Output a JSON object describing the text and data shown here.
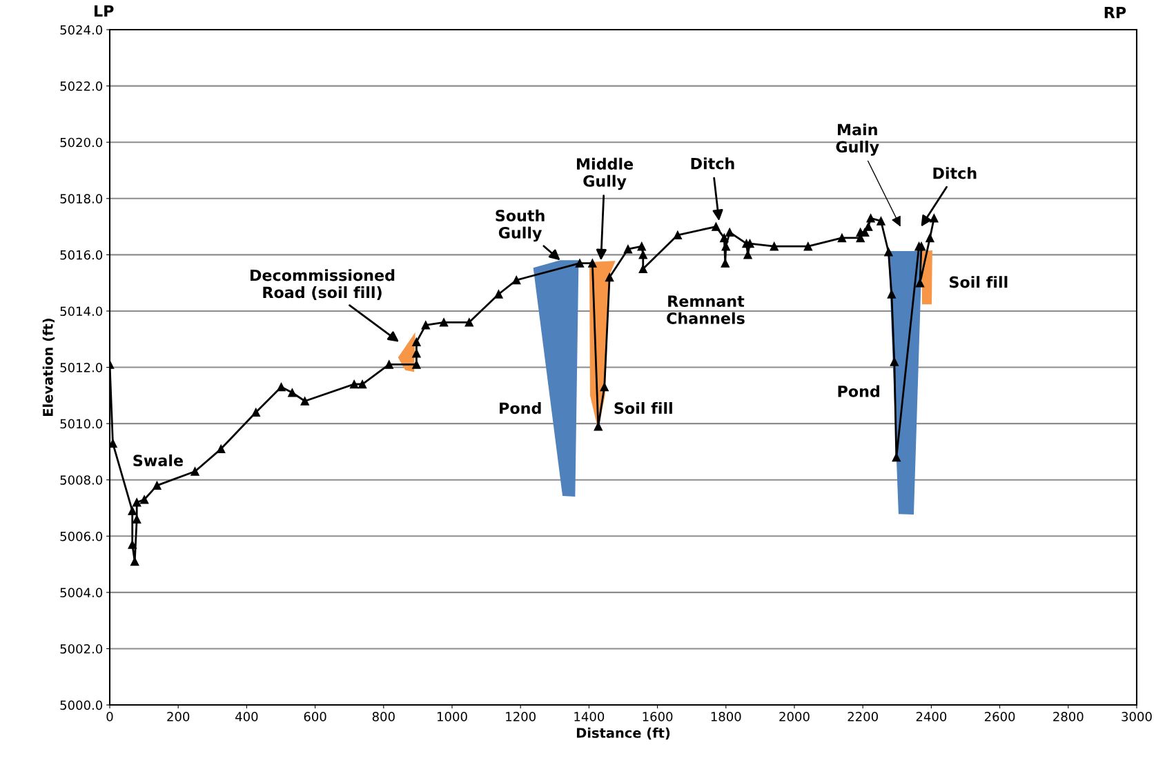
{
  "chart_data": {
    "type": "line",
    "xlabel": "Distance (ft)",
    "ylabel": "Elevation (ft)",
    "x": [
      0,
      9,
      66,
      66,
      73,
      79,
      79,
      101,
      138,
      249,
      325,
      427,
      501,
      533,
      570,
      714,
      738,
      816,
      896,
      896,
      896,
      923,
      976,
      1050,
      1136,
      1188,
      1373,
      1410,
      1427,
      1445,
      1460,
      1514,
      1554,
      1558,
      1558,
      1659,
      1771,
      1795,
      1798,
      1800,
      1811,
      1860,
      1864,
      1870,
      1941,
      2040,
      2139,
      2193,
      2193,
      2206,
      2216,
      2223,
      2253,
      2275,
      2284,
      2292,
      2298,
      2364,
      2371,
      2367,
      2396,
      2408
    ],
    "series": [
      {
        "color": "#000000",
        "values": [
          5012.1,
          5009.3,
          5006.9,
          5005.7,
          5005.1,
          5006.6,
          5007.2,
          5007.3,
          5007.8,
          5008.3,
          5009.1,
          5010.4,
          5011.3,
          5011.1,
          5010.8,
          5011.4,
          5011.4,
          5012.1,
          5012.1,
          5012.5,
          5012.9,
          5013.5,
          5013.6,
          5013.6,
          5014.6,
          5015.1,
          5015.7,
          5015.7,
          5009.9,
          5011.3,
          5015.2,
          5016.2,
          5016.3,
          5016.0,
          5015.5,
          5016.7,
          5017.0,
          5016.6,
          5015.7,
          5016.3,
          5016.8,
          5016.4,
          5016.0,
          5016.4,
          5016.3,
          5016.3,
          5016.6,
          5016.6,
          5016.8,
          5016.8,
          5017.0,
          5017.3,
          5017.2,
          5016.1,
          5014.6,
          5012.2,
          5008.8,
          5016.3,
          5016.3,
          5015.0,
          5016.6,
          5017.3
        ]
      }
    ],
    "xlim": [
      0,
      3000
    ],
    "xticks": [
      0,
      200,
      400,
      600,
      800,
      1000,
      1200,
      1400,
      1600,
      1800,
      2000,
      2200,
      2400,
      2600,
      2800,
      3000
    ],
    "ylim": [
      5000,
      5024
    ],
    "yticks": [
      {
        "value": 5000,
        "label": "5000.0"
      },
      {
        "value": 5002,
        "label": "5002.0"
      },
      {
        "value": 5004,
        "label": "5004.0"
      },
      {
        "value": 5006,
        "label": "5006.0"
      },
      {
        "value": 5008,
        "label": "5008.0"
      },
      {
        "value": 5010,
        "label": "5010.0"
      },
      {
        "value": 5012,
        "label": "5012.0"
      },
      {
        "value": 5014,
        "label": "5014.0"
      },
      {
        "value": 5016,
        "label": "5016.0"
      },
      {
        "value": 5018,
        "label": "5018.0"
      },
      {
        "value": 5020,
        "label": "5020.0"
      },
      {
        "value": 5022,
        "label": "5022.0"
      },
      {
        "value": 5024,
        "label": "5024.0"
      }
    ],
    "grid": "y",
    "marker": "triangle",
    "line_style": "solid",
    "annotations": [
      "LP",
      "RP",
      "Swale",
      "Decommissioned\nRoad (soil fill)",
      "South\nGully",
      "Middle\nGully",
      "Ditch",
      "Main\nGully",
      "Ditch",
      "Pond",
      "Soil fill",
      "Remnant\nChannels",
      "Pond",
      "Soil fill"
    ]
  }
}
